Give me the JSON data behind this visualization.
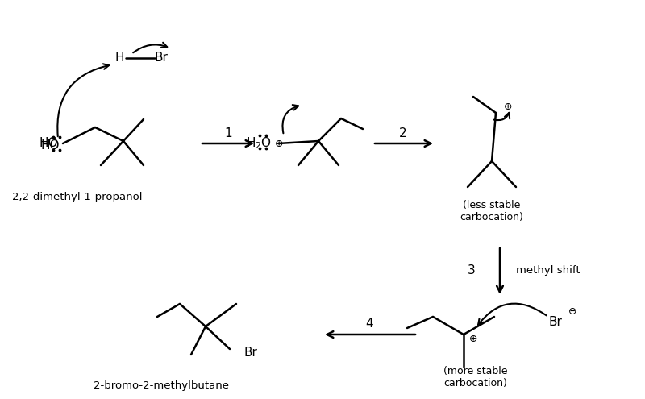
{
  "bg_color": "#ffffff",
  "fig_width": 8.0,
  "fig_height": 4.95,
  "label_22dimethyl": "2,2-dimethyl-1-propanol",
  "label_2bromo": "2-bromo-2-methylbutane",
  "label_less_stable": "(less stable\ncarbocation)",
  "label_more_stable": "(more stable\ncarbocation)",
  "label_methyl_shift": "methyl shift",
  "step1": "1",
  "step2": "2",
  "step3": "3",
  "step4": "4"
}
